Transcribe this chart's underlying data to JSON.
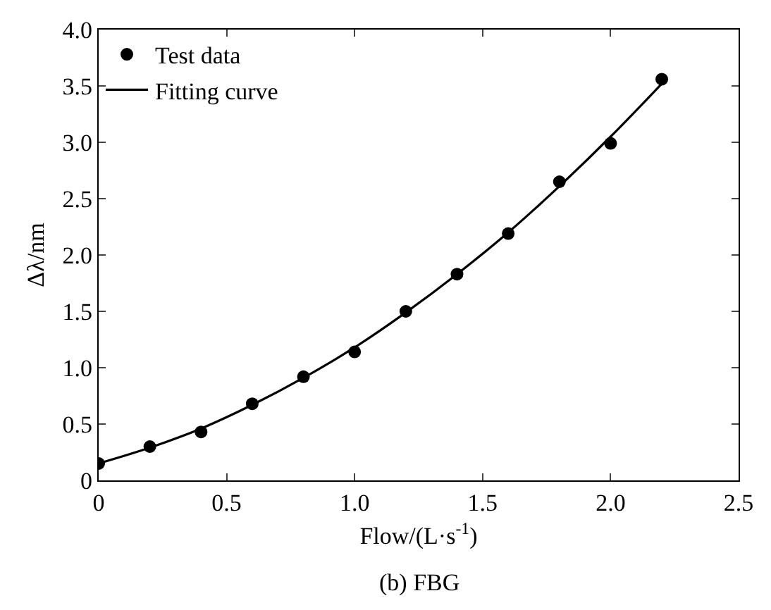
{
  "chart_data": {
    "type": "scatter",
    "xlabel": "Flow/(L·s$^{-1}$)",
    "ylabel": "Δλ/nm",
    "annotations": [
      "(b) FBG"
    ],
    "series": [
      {
        "name": "Test data",
        "color": "#000000",
        "marker": "circle",
        "x": [
          0,
          0.2,
          0.4,
          0.6,
          0.8,
          1.0,
          1.2,
          1.4,
          1.6,
          1.8,
          2.0,
          2.2
        ],
        "values": [
          0.15,
          0.3,
          0.43,
          0.68,
          0.92,
          1.14,
          1.5,
          1.83,
          2.19,
          2.65,
          2.99,
          3.56
        ]
      },
      {
        "name": "Fitting curve",
        "type": "line",
        "color": "#000000",
        "line_style": "solid",
        "x": [
          0,
          0.2,
          0.4,
          0.6,
          0.8,
          1.0,
          1.2,
          1.4,
          1.6,
          1.8,
          2.0,
          2.2
        ],
        "values": [
          0.15,
          0.29,
          0.46,
          0.67,
          0.91,
          1.18,
          1.49,
          1.83,
          2.2,
          2.61,
          3.05,
          3.52
        ]
      }
    ],
    "xlim": [
      0,
      2.5
    ],
    "ylim": [
      0,
      4.0
    ],
    "xticks": [
      0,
      0.5,
      {
        "value": 1,
        "label": "1.0"
      },
      1.5,
      {
        "value": 2,
        "label": "2.0"
      },
      2.5
    ],
    "yticks": [
      0,
      0.5,
      {
        "value": 1,
        "label": "1.0"
      },
      1.5,
      {
        "value": 2,
        "label": "2.0"
      },
      2.5,
      {
        "value": 3,
        "label": "3.0"
      },
      3.5,
      {
        "value": 4,
        "label": "4.0"
      }
    ],
    "legend": "top left"
  }
}
